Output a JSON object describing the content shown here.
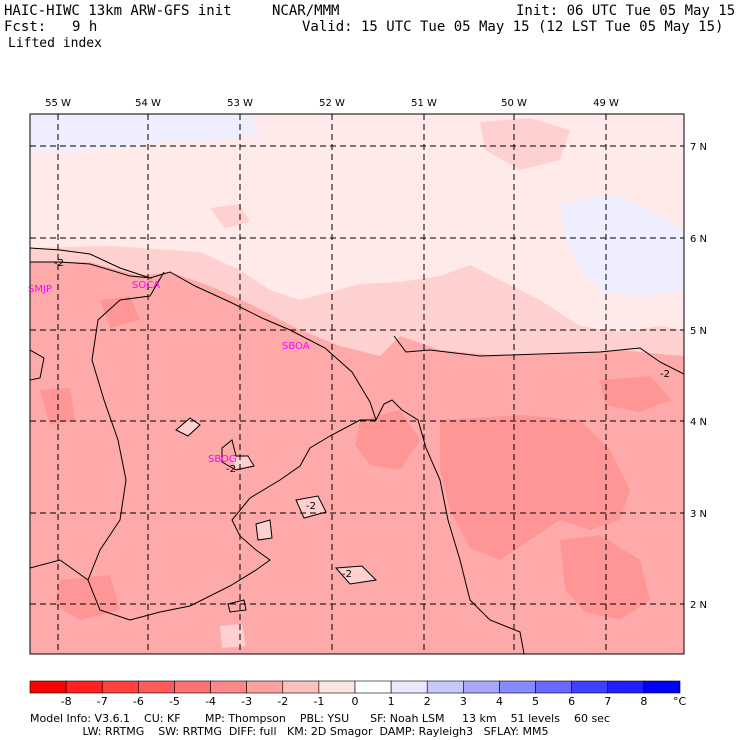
{
  "header": {
    "model_title": "HAIC-HIWC 13km ARW-GFS init",
    "org": "NCAR/MMM",
    "init": "Init: 06 UTC Tue 05 May 15",
    "fcst_label": "Fcst:",
    "fcst_value": "9 h",
    "valid": "Valid: 15 UTC Tue 05 May 15 (12 LST Tue 05 May 15)",
    "field": "Lifted index"
  },
  "map": {
    "lon_labels": [
      "55 W",
      "54 W",
      "53 W",
      "52 W",
      "51 W",
      "50 W",
      "49 W"
    ],
    "lat_labels": [
      "7 N",
      "6 N",
      "5 N",
      "4 N",
      "3 N",
      "2 N"
    ],
    "stations": [
      "SMJP",
      "SOCA",
      "SBOA",
      "SBOG"
    ],
    "contour_labels": [
      "-2",
      "-2",
      "-2",
      "-2",
      "-2"
    ],
    "colors": {
      "light_blue": "#eeeeff",
      "faint_pink": "#ffeaea",
      "light_pink": "#ffd0d0",
      "pink": "#ffaaaa",
      "medium_pink": "#ff9090",
      "station_color": "#ff00ff"
    }
  },
  "colorbar": {
    "labels": [
      "-8",
      "-7",
      "-6",
      "-5",
      "-4",
      "-3",
      "-2",
      "-1",
      "0",
      "1",
      "2",
      "3",
      "4",
      "5",
      "6",
      "7",
      "8"
    ],
    "unit": "°C",
    "colors": [
      "#ff0000",
      "#ff2020",
      "#ff4040",
      "#ff5a5a",
      "#ff7070",
      "#ff8888",
      "#ffa0a0",
      "#ffc0c0",
      "#ffe4e4",
      "#ffffff",
      "#e8e8ff",
      "#c8c8ff",
      "#a8a8ff",
      "#8888ff",
      "#6868ff",
      "#4040ff",
      "#2020ff",
      "#0000ff"
    ]
  },
  "info": {
    "line1": "Model Info: V3.6.1    CU: KF       MP: Thompson    PBL: YSU      SF: Noah LSM     13 km    51 levels    60 sec",
    "line2": "               LW: RRTMG    SW: RRTMG  DIFF: full   KM: 2D Smagor  DAMP: Rayleigh3   SFLAY: MM5"
  }
}
